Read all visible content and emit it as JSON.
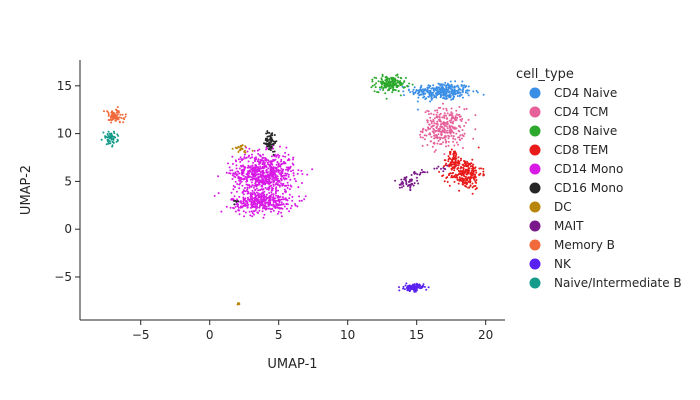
{
  "chart_data": {
    "type": "scatter",
    "title": "",
    "xlabel": "UMAP-1",
    "ylabel": "UMAP-2",
    "xlim": [
      -9.4,
      21.4
    ],
    "ylim": [
      -9.5,
      17.7
    ],
    "xticks": [
      -5,
      0,
      5,
      10,
      15,
      20
    ],
    "yticks": [
      -5,
      0,
      5,
      10,
      15
    ],
    "xtick_labels": [
      "−5",
      "0",
      "5",
      "10",
      "15",
      "20"
    ],
    "ytick_labels": [
      "−5",
      "0",
      "5",
      "10",
      "15"
    ],
    "grid": false,
    "legend": {
      "title": "cell_type",
      "placement": "right"
    },
    "series": [
      {
        "name": "CD4 Naive",
        "color": "#3a8ee6",
        "clusters": [
          {
            "cx": 16.8,
            "cy": 14.4,
            "sx": 1.1,
            "sy": 0.45,
            "n": 320
          }
        ]
      },
      {
        "name": "CD4 TCM",
        "color": "#e6609a",
        "clusters": [
          {
            "cx": 17.0,
            "cy": 10.6,
            "sx": 0.75,
            "sy": 1.0,
            "n": 300
          }
        ]
      },
      {
        "name": "CD8 Naive",
        "color": "#2ca92c",
        "clusters": [
          {
            "cx": 13.1,
            "cy": 15.2,
            "sx": 0.55,
            "sy": 0.4,
            "n": 170
          }
        ]
      },
      {
        "name": "CD8 TEM",
        "color": "#e81a1a",
        "clusters": [
          {
            "cx": 18.5,
            "cy": 5.8,
            "sx": 0.6,
            "sy": 0.8,
            "n": 260
          },
          {
            "cx": 17.7,
            "cy": 7.3,
            "sx": 0.25,
            "sy": 0.5,
            "n": 60
          }
        ]
      },
      {
        "name": "CD14 Mono",
        "color": "#d91ae6",
        "clusters": [
          {
            "cx": 3.9,
            "cy": 5.8,
            "sx": 1.1,
            "sy": 1.1,
            "n": 700
          },
          {
            "cx": 3.8,
            "cy": 2.8,
            "sx": 1.1,
            "sy": 0.55,
            "n": 350
          }
        ]
      },
      {
        "name": "CD16 Mono",
        "color": "#262626",
        "clusters": [
          {
            "cx": 4.4,
            "cy": 9.2,
            "sx": 0.2,
            "sy": 0.55,
            "n": 70
          },
          {
            "cx": 1.9,
            "cy": 2.9,
            "sx": 0.1,
            "sy": 0.15,
            "n": 5
          }
        ]
      },
      {
        "name": "DC",
        "color": "#b8860b",
        "clusters": [
          {
            "cx": 2.2,
            "cy": 8.4,
            "sx": 0.35,
            "sy": 0.22,
            "n": 25
          },
          {
            "cx": 2.1,
            "cy": -7.8,
            "sx": 0.08,
            "sy": 0.08,
            "n": 6
          }
        ]
      },
      {
        "name": "MAIT",
        "color": "#7a1a8a",
        "clusters": [
          {
            "cx": 14.4,
            "cy": 4.9,
            "sx": 0.3,
            "sy": 0.35,
            "n": 45
          },
          {
            "cx": 15.2,
            "cy": 5.9,
            "sx": 0.3,
            "sy": 0.2,
            "n": 15
          },
          {
            "cx": 16.8,
            "cy": 6.3,
            "sx": 0.3,
            "sy": 0.15,
            "n": 8
          }
        ]
      },
      {
        "name": "Memory B",
        "color": "#f06a3c",
        "clusters": [
          {
            "cx": -6.9,
            "cy": 11.8,
            "sx": 0.35,
            "sy": 0.35,
            "n": 90
          }
        ]
      },
      {
        "name": "NK",
        "color": "#5a22f0",
        "clusters": [
          {
            "cx": 14.8,
            "cy": -6.1,
            "sx": 0.35,
            "sy": 0.18,
            "n": 110
          }
        ]
      },
      {
        "name": "Naive/Intermediate B",
        "color": "#149b8a",
        "clusters": [
          {
            "cx": -7.2,
            "cy": 9.5,
            "sx": 0.25,
            "sy": 0.35,
            "n": 60
          }
        ]
      }
    ]
  }
}
